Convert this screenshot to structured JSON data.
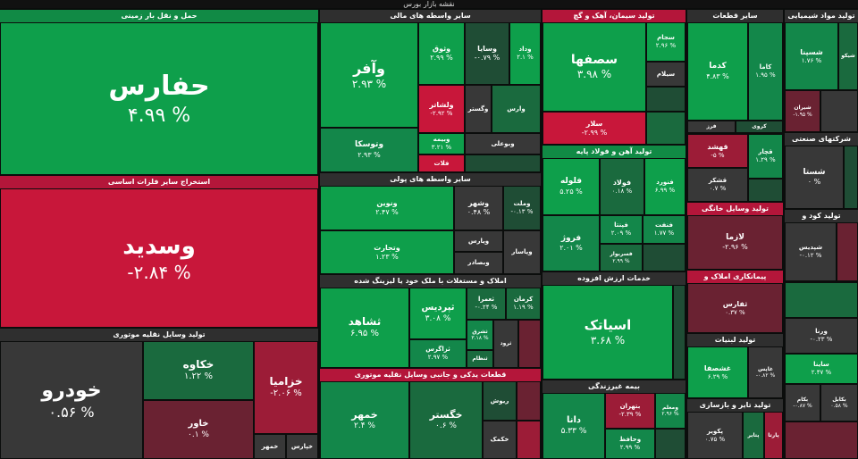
{
  "title": "نقشه بازار بورس",
  "sectors": [
    {
      "id": "transport",
      "label": "حمل و نقل بار زمینی"
    },
    {
      "id": "metals",
      "label": "استخراج سایر فلزات اساسی"
    },
    {
      "id": "auto",
      "label": "تولید وسایل نقلیه موتوری"
    },
    {
      "id": "fin_other",
      "label": "سایر واسطه های مالی"
    },
    {
      "id": "money_inter",
      "label": "سایر واسطه های پولی"
    },
    {
      "id": "realestate",
      "label": "املاک و مستغلات با ملک خود یا لیزینگ شده"
    },
    {
      "id": "parts",
      "label": "قطعات یدکی و جانبی وسایل نقلیه موتوری"
    },
    {
      "id": "cement",
      "label": "تولید سیمان، آهک و گچ"
    },
    {
      "id": "steel",
      "label": "تولید آهن و فولاد پایه"
    },
    {
      "id": "added",
      "label": "خدمات ارزش افزوده"
    },
    {
      "id": "insurance",
      "label": "بیمه غیرزندگی"
    },
    {
      "id": "chem",
      "label": "تولید مواد شیمیایی"
    },
    {
      "id": "holding",
      "label": "شرکتهای صنعتی"
    },
    {
      "id": "home",
      "label": "تولید وسایل خانگی"
    },
    {
      "id": "fert",
      "label": "تولید کود و"
    },
    {
      "id": "contract",
      "label": "پیمانکاری املاک و"
    },
    {
      "id": "dairy",
      "label": "تولید لبنیات"
    },
    {
      "id": "tire",
      "label": "تولید تایر و بازسازی"
    },
    {
      "id": "other_ind",
      "label": "سایر قطعات"
    }
  ],
  "tiles": [
    {
      "name": "حفارس",
      "pct": "۴.۹۹ %"
    },
    {
      "name": "وسدید",
      "pct": "-۲.۸۴ %"
    },
    {
      "name": "خودرو",
      "pct": "۰.۵۶ %"
    },
    {
      "name": "خکاوه",
      "pct": "۱.۲۲ %"
    },
    {
      "name": "خزامیا",
      "pct": "-۲.۰۶ %"
    },
    {
      "name": "خاور",
      "pct": "۰.۱ %"
    },
    {
      "name": "خمهر",
      "pct": ""
    },
    {
      "name": "خپارس",
      "pct": ""
    },
    {
      "name": "وآفر",
      "pct": "۲.۹۳ %"
    },
    {
      "name": "وثوق",
      "pct": "۲.۹۹ %"
    },
    {
      "name": "وسایا",
      "pct": "-۰.۷۹ %"
    },
    {
      "name": "وداد",
      "pct": "۲.۱ %"
    },
    {
      "name": "وتوسکا",
      "pct": "۲.۹۳ %"
    },
    {
      "name": "ولشاتر",
      "pct": "-۲.۹۲ %"
    },
    {
      "name": "وگستر",
      "pct": ""
    },
    {
      "name": "وارس",
      "pct": ""
    },
    {
      "name": "وبیمه",
      "pct": "۳.۲۱ %"
    },
    {
      "name": "وبوعلی",
      "pct": ""
    },
    {
      "name": "فلات",
      "pct": ""
    },
    {
      "name": "ونوین",
      "pct": "۲.۴۷ %"
    },
    {
      "name": "وشهر",
      "pct": "۰.۴۸ %"
    },
    {
      "name": "وملت",
      "pct": "-۰.۱۳ %"
    },
    {
      "name": "وتجارت",
      "pct": "۱.۲۳ %"
    },
    {
      "name": "ویارس",
      "pct": ""
    },
    {
      "name": "وپاسار",
      "pct": ""
    },
    {
      "name": "وبصادر",
      "pct": ""
    },
    {
      "name": "ثشاهد",
      "pct": "۶.۹۵ %"
    },
    {
      "name": "ثپردیس",
      "pct": "۳.۰۸ %"
    },
    {
      "name": "ثعمرا",
      "pct": "-۰.۲۴ %"
    },
    {
      "name": "کرمان",
      "pct": "۱.۱۹ %"
    },
    {
      "name": "ثزاگرس",
      "pct": "۲.۹۷ %"
    },
    {
      "name": "ثشرق",
      "pct": "۳.۱۸ %"
    },
    {
      "name": "ثنظام",
      "pct": ""
    },
    {
      "name": "ثرود",
      "pct": ""
    },
    {
      "name": "خمهر",
      "pct": "۲.۴ %"
    },
    {
      "name": "خگستر",
      "pct": "۰.۶ %"
    },
    {
      "name": "ریوش",
      "pct": ""
    },
    {
      "name": "خکمک",
      "pct": ""
    },
    {
      "name": "سصفها",
      "pct": "۳.۹۸ %"
    },
    {
      "name": "سجام",
      "pct": "۲.۹۶ %"
    },
    {
      "name": "سیلام",
      "pct": ""
    },
    {
      "name": "سلار",
      "pct": "-۲.۹۹ %"
    },
    {
      "name": "فلوله",
      "pct": "۵.۲۵ %"
    },
    {
      "name": "فولاد",
      "pct": "۰.۱۸ %"
    },
    {
      "name": "فنورد",
      "pct": "۶.۹۹ %"
    },
    {
      "name": "فپنتا",
      "pct": "۲.۰۹ %"
    },
    {
      "name": "فنفت",
      "pct": "۱.۷۷ %"
    },
    {
      "name": "فروژ",
      "pct": "۲.۰۱ %"
    },
    {
      "name": "فسربوار",
      "pct": "۲.۹۹ %"
    },
    {
      "name": "اسیاتک",
      "pct": "۳.۶۸ %"
    },
    {
      "name": "دانا",
      "pct": "۵.۳۳ %"
    },
    {
      "name": "بتهران",
      "pct": "-۲.۳۹ %"
    },
    {
      "name": "ومعلم",
      "pct": "۲.۹۶ %"
    },
    {
      "name": "وحافظ",
      "pct": "۲.۹۹ %"
    },
    {
      "name": "کدما",
      "pct": "۴.۸۳ %"
    },
    {
      "name": "کاما",
      "pct": "۱.۹۵ %"
    },
    {
      "name": "کروی",
      "pct": ""
    },
    {
      "name": "فرز",
      "pct": ""
    },
    {
      "name": "قهشد",
      "pct": "-۵ %"
    },
    {
      "name": "قچار",
      "pct": "۱.۲۹ %"
    },
    {
      "name": "قشکر",
      "pct": "۰.۷ %"
    },
    {
      "name": "لازما",
      "pct": "-۲.۹۶ %"
    },
    {
      "name": "ثفارس",
      "pct": "۰.۳۷ %"
    },
    {
      "name": "غشصفا",
      "pct": "۶.۲۹ %"
    },
    {
      "name": "غاپس",
      "pct": "-۰.۸۲ %"
    },
    {
      "name": "پکویر",
      "pct": "۰.۷۵ %"
    },
    {
      "name": "پتایر",
      "pct": ""
    },
    {
      "name": "پارتا",
      "pct": ""
    },
    {
      "name": "شسپنا",
      "pct": "۱.۷۶ %"
    },
    {
      "name": "شیکو",
      "pct": ""
    },
    {
      "name": "شیران",
      "pct": "-۱.۹۵ %"
    },
    {
      "name": "شستا",
      "pct": "۰ %"
    },
    {
      "name": "شپدیس",
      "pct": "-۰.۱۲ %"
    },
    {
      "name": "ساینا",
      "pct": "۲.۴۷ %"
    },
    {
      "name": "ورنا",
      "pct": "-۰.۲۳ %"
    },
    {
      "name": "بکام",
      "pct": "-۰.۸۷ %"
    },
    {
      "name": "بکابل",
      "pct": "۰.۵۸ %"
    }
  ]
}
